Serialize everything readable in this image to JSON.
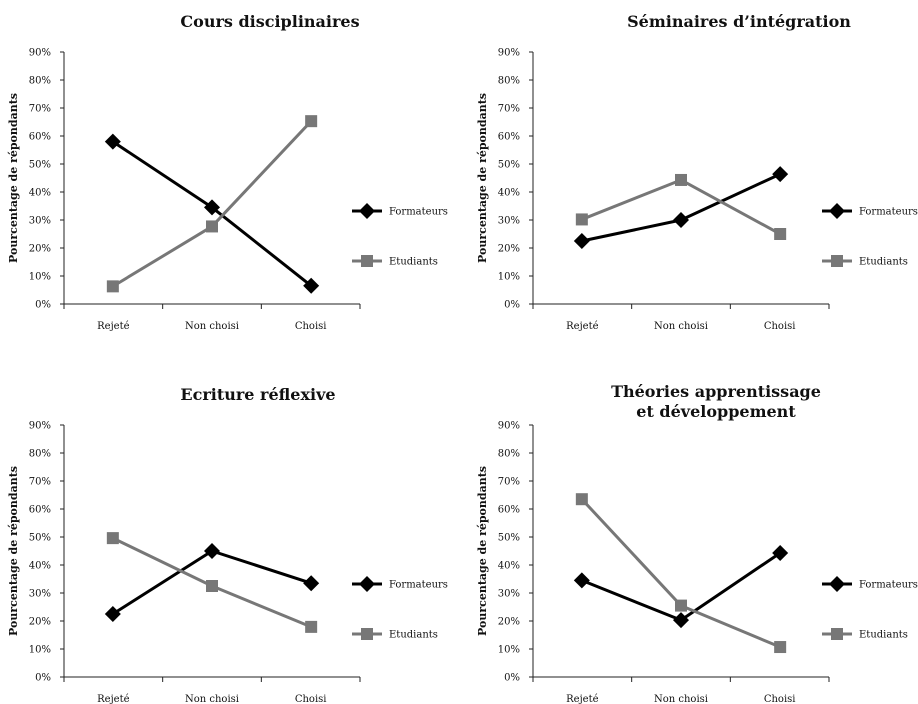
{
  "colors": {
    "formateurs": "#000000",
    "etudiants": "#777777",
    "axis": "#222222"
  },
  "chart_data": [
    {
      "type": "line",
      "title_lines": [
        "Cours disciplinaires"
      ],
      "ylabel": "Pourcentage de répondants",
      "categories": [
        "Rejeté",
        "Non choisi",
        "Choisi"
      ],
      "ylim": [
        0,
        90
      ],
      "yticks": [
        "0%",
        "10%",
        "20%",
        "30%",
        "40%",
        "50%",
        "60%",
        "70%",
        "80%",
        "90%"
      ],
      "series": [
        {
          "name": "Formateurs",
          "marker": "diamond",
          "values": [
            58,
            34.5,
            6.5
          ]
        },
        {
          "name": "Etudiants",
          "marker": "square",
          "values": [
            6.3,
            27.7,
            65.3
          ]
        }
      ]
    },
    {
      "type": "line",
      "title_lines": [
        "Séminaires d’intégration"
      ],
      "ylabel": "Pourcentage de répondants",
      "categories": [
        "Rejeté",
        "Non choisi",
        "Choisi"
      ],
      "ylim": [
        0,
        90
      ],
      "yticks": [
        "0%",
        "10%",
        "20%",
        "30%",
        "40%",
        "50%",
        "60%",
        "70%",
        "80%",
        "90%"
      ],
      "series": [
        {
          "name": "Formateurs",
          "marker": "diamond",
          "values": [
            22.5,
            30,
            46.4
          ]
        },
        {
          "name": "Etudiants",
          "marker": "square",
          "values": [
            30.2,
            44.3,
            25
          ]
        }
      ]
    },
    {
      "type": "line",
      "title_lines": [
        "Ecriture réflexive"
      ],
      "ylabel": "Pourcentage de répondants",
      "categories": [
        "Rejeté",
        "Non choisi",
        "Choisi"
      ],
      "ylim": [
        0,
        90
      ],
      "yticks": [
        "0%",
        "10%",
        "20%",
        "30%",
        "40%",
        "50%",
        "60%",
        "70%",
        "80%",
        "90%"
      ],
      "series": [
        {
          "name": "Formateurs",
          "marker": "diamond",
          "values": [
            22.5,
            45,
            33.5
          ]
        },
        {
          "name": "Etudiants",
          "marker": "square",
          "values": [
            49.6,
            32.5,
            17.9
          ]
        }
      ]
    },
    {
      "type": "line",
      "title_lines": [
        "Théories apprentissage",
        "et développement"
      ],
      "ylabel": "Pourcentage de répondants",
      "categories": [
        "Rejeté",
        "Non choisi",
        "Choisi"
      ],
      "ylim": [
        0,
        90
      ],
      "yticks": [
        "0%",
        "10%",
        "20%",
        "30%",
        "40%",
        "50%",
        "60%",
        "70%",
        "80%",
        "90%"
      ],
      "series": [
        {
          "name": "Formateurs",
          "marker": "diamond",
          "values": [
            34.5,
            20.3,
            44.3
          ]
        },
        {
          "name": "Etudiants",
          "marker": "square",
          "values": [
            63.5,
            25.5,
            10.7
          ]
        }
      ]
    }
  ]
}
